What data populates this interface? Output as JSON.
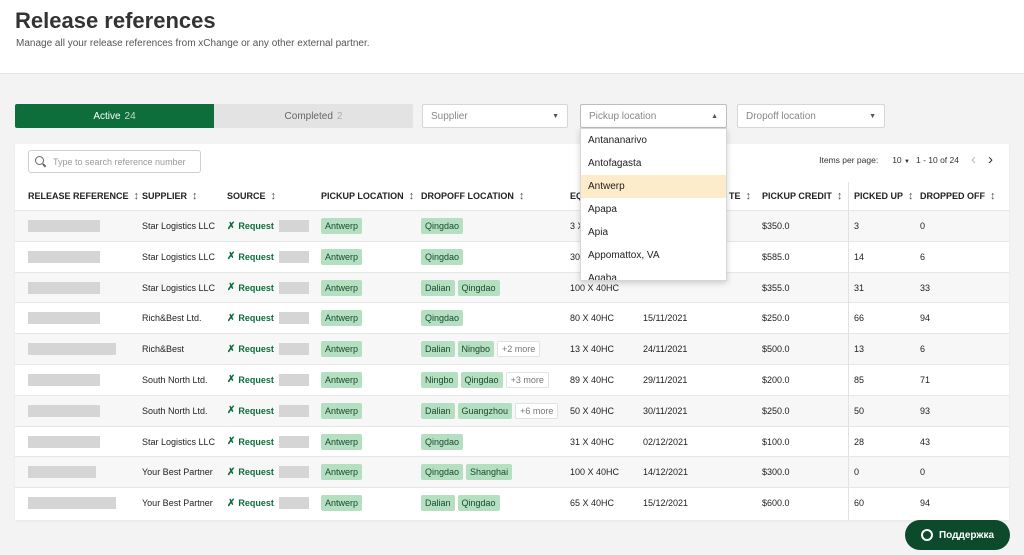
{
  "header": {
    "title": "Release references",
    "subtitle": "Manage all your release references from xChange or any other external partner."
  },
  "tabs": [
    {
      "label": "Active",
      "count": "24"
    },
    {
      "label": "Completed",
      "count": "2"
    }
  ],
  "filters": {
    "supplier": "Supplier",
    "pickup": "Pickup location",
    "dropoff": "Dropoff location"
  },
  "dropdown": {
    "items": [
      "Antananarivo",
      "Antofagasta",
      "Antwerp",
      "Apapa",
      "Apia",
      "Appomattox, VA",
      "Aqaba"
    ],
    "highlighted": "Antwerp"
  },
  "search": {
    "placeholder": "Type to search reference number"
  },
  "pagination": {
    "label": "Items per page:",
    "size": "10",
    "range": "1 - 10 of 24"
  },
  "columns": {
    "release_reference": "RELEASE REFERENCE",
    "supplier": "SUPPLIER",
    "source": "SOURCE",
    "pickup_location": "PICKUP LOCATION",
    "dropoff_location": "DROPOFF LOCATION",
    "equipment": "EQ",
    "date": "TE",
    "pickup_credit": "PICKUP CREDIT",
    "picked_up": "PICKED UP",
    "dropped_off": "DROPPED OFF"
  },
  "source_label": "Request",
  "rows": [
    {
      "supplier": "Star Logistics LLC",
      "pickup": "Antwerp",
      "dropoff": [
        "Qingdao"
      ],
      "more": "",
      "equipment": "3 X",
      "date": "",
      "credit": "$350.0",
      "picked_up": "3",
      "dropped_off": "0",
      "ref_width": 72
    },
    {
      "supplier": "Star Logistics LLC",
      "pickup": "Antwerp",
      "dropoff": [
        "Qingdao"
      ],
      "more": "",
      "equipment": "30",
      "date": "",
      "credit": "$585.0",
      "picked_up": "14",
      "dropped_off": "6",
      "ref_width": 72
    },
    {
      "supplier": "Star Logistics LLC",
      "pickup": "Antwerp",
      "dropoff": [
        "Dalian",
        "Qingdao"
      ],
      "more": "",
      "equipment": "100 X 40HC",
      "date": "",
      "credit": "$355.0",
      "picked_up": "31",
      "dropped_off": "33",
      "ref_width": 72
    },
    {
      "supplier": "Rich&Best Ltd.",
      "pickup": "Antwerp",
      "dropoff": [
        "Qingdao"
      ],
      "more": "",
      "equipment": "80 X 40HC",
      "date": "15/11/2021",
      "credit": "$250.0",
      "picked_up": "66",
      "dropped_off": "94",
      "ref_width": 72
    },
    {
      "supplier": "Rich&Best",
      "pickup": "Antwerp",
      "dropoff": [
        "Dalian",
        "Ningbo"
      ],
      "more": "+2 more",
      "equipment": "13 X 40HC",
      "date": "24/11/2021",
      "credit": "$500.0",
      "picked_up": "13",
      "dropped_off": "6",
      "ref_width": 88
    },
    {
      "supplier": "South North Ltd.",
      "pickup": "Antwerp",
      "dropoff": [
        "Ningbo",
        "Qingdao"
      ],
      "more": "+3 more",
      "equipment": "89 X 40HC",
      "date": "29/11/2021",
      "credit": "$200.0",
      "picked_up": "85",
      "dropped_off": "71",
      "ref_width": 72
    },
    {
      "supplier": "South North Ltd.",
      "pickup": "Antwerp",
      "dropoff": [
        "Dalian",
        "Guangzhou"
      ],
      "more": "+6 more",
      "equipment": "50 X 40HC",
      "date": "30/11/2021",
      "credit": "$250.0",
      "picked_up": "50",
      "dropped_off": "93",
      "ref_width": 72
    },
    {
      "supplier": "Star Logistics LLC",
      "pickup": "Antwerp",
      "dropoff": [
        "Qingdao"
      ],
      "more": "",
      "equipment": "31 X 40HC",
      "date": "02/12/2021",
      "credit": "$100.0",
      "picked_up": "28",
      "dropped_off": "43",
      "ref_width": 72
    },
    {
      "supplier": "Your Best Partner",
      "pickup": "Antwerp",
      "dropoff": [
        "Qingdao",
        "Shanghai"
      ],
      "more": "",
      "equipment": "100 X 40HC",
      "date": "14/12/2021",
      "credit": "$300.0",
      "picked_up": "0",
      "dropped_off": "0",
      "ref_width": 68
    },
    {
      "supplier": "Your Best Partner",
      "pickup": "Antwerp",
      "dropoff": [
        "Dalian",
        "Qingdao"
      ],
      "more": "",
      "equipment": "65 X 40HC",
      "date": "15/12/2021",
      "credit": "$600.0",
      "picked_up": "60",
      "dropped_off": "94",
      "ref_width": 88
    }
  ],
  "support": {
    "label": "Поддержка"
  },
  "colors": {
    "brand": "#0d6e3c",
    "chip": "#b5dfc1",
    "highlight": "#fdebc9"
  }
}
